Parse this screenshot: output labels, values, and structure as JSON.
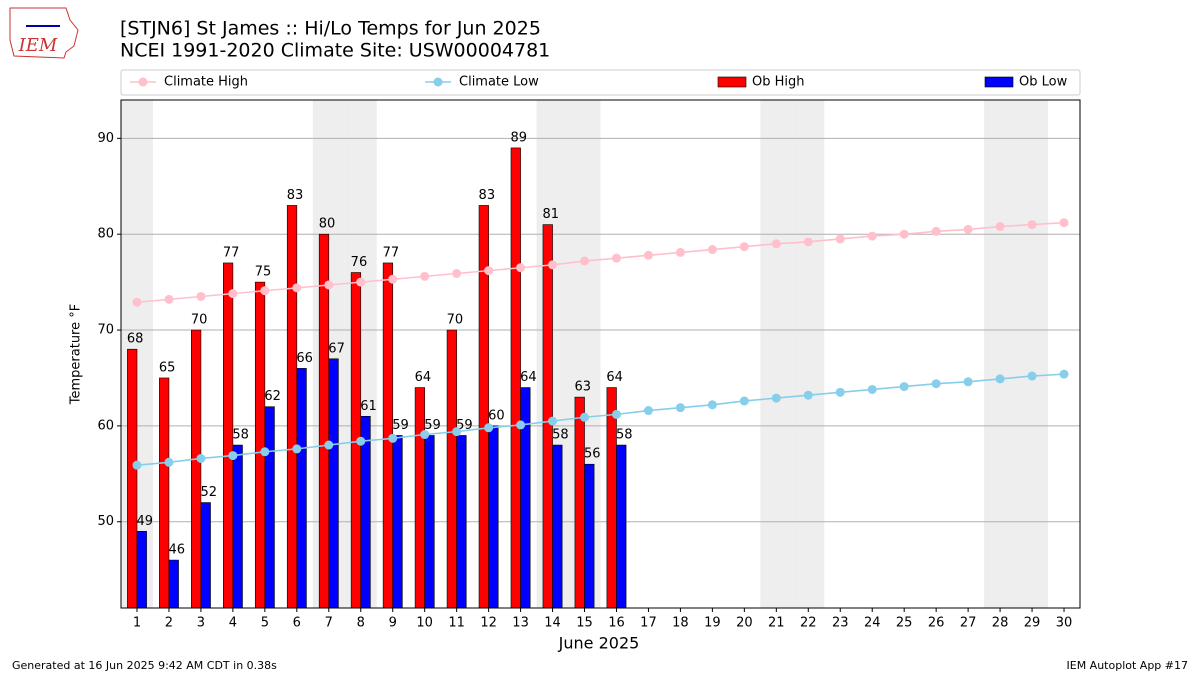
{
  "chart_data": {
    "type": "bar",
    "title": "[STJN6] St James :: Hi/Lo Temps for Jun 2025",
    "subtitle": "NCEI 1991-2020 Climate Site: USW00004781",
    "logo_text": "IEM",
    "x_label": "June 2025",
    "y_label": "Temperature °F",
    "footer_left": "Generated at 16 Jun 2025 9:42 AM CDT in 0.38s",
    "footer_right": "IEM Autoplot App #17",
    "x": [
      1,
      2,
      3,
      4,
      5,
      6,
      7,
      8,
      9,
      10,
      11,
      12,
      13,
      14,
      15,
      16,
      17,
      18,
      19,
      20,
      21,
      22,
      23,
      24,
      25,
      26,
      27,
      28,
      29,
      30
    ],
    "xlim": [
      0.5,
      30.5
    ],
    "xticks": [
      1,
      2,
      3,
      4,
      5,
      6,
      7,
      8,
      9,
      10,
      11,
      12,
      13,
      14,
      15,
      16,
      17,
      18,
      19,
      20,
      21,
      22,
      23,
      24,
      25,
      26,
      27,
      28,
      29,
      30
    ],
    "ylim": [
      41,
      94
    ],
    "yticks": [
      50,
      60,
      70,
      80,
      90
    ],
    "grid": true,
    "shaded_days": [
      1,
      7,
      8,
      14,
      15,
      21,
      22,
      28,
      29
    ],
    "series": [
      {
        "name": "Climate High",
        "type": "line",
        "color": "#ffc0cb",
        "values": [
          72.9,
          73.2,
          73.5,
          73.8,
          74.1,
          74.4,
          74.7,
          75.0,
          75.3,
          75.6,
          75.9,
          76.2,
          76.5,
          76.8,
          77.2,
          77.5,
          77.8,
          78.1,
          78.4,
          78.7,
          79.0,
          79.2,
          79.5,
          79.8,
          80.0,
          80.3,
          80.5,
          80.8,
          81.0,
          81.2
        ]
      },
      {
        "name": "Climate Low",
        "type": "line",
        "color": "#87ceeb",
        "values": [
          55.9,
          56.2,
          56.6,
          56.9,
          57.3,
          57.6,
          58.0,
          58.4,
          58.7,
          59.1,
          59.4,
          59.8,
          60.1,
          60.5,
          60.9,
          61.2,
          61.6,
          61.9,
          62.2,
          62.6,
          62.9,
          63.2,
          63.5,
          63.8,
          64.1,
          64.4,
          64.6,
          64.9,
          65.2,
          65.4
        ]
      },
      {
        "name": "Ob High",
        "type": "bar",
        "color": "#ff0000",
        "values": [
          68,
          65,
          70,
          77,
          75,
          83,
          80,
          76,
          77,
          64,
          70,
          83,
          89,
          81,
          63,
          64,
          null,
          null,
          null,
          null,
          null,
          null,
          null,
          null,
          null,
          null,
          null,
          null,
          null,
          null
        ]
      },
      {
        "name": "Ob Low",
        "type": "bar",
        "color": "#0000ff",
        "values": [
          49,
          46,
          52,
          58,
          62,
          66,
          67,
          61,
          59,
          59,
          59,
          60,
          64,
          58,
          56,
          58,
          null,
          null,
          null,
          null,
          null,
          null,
          null,
          null,
          null,
          null,
          null,
          null,
          null,
          null
        ]
      }
    ]
  }
}
